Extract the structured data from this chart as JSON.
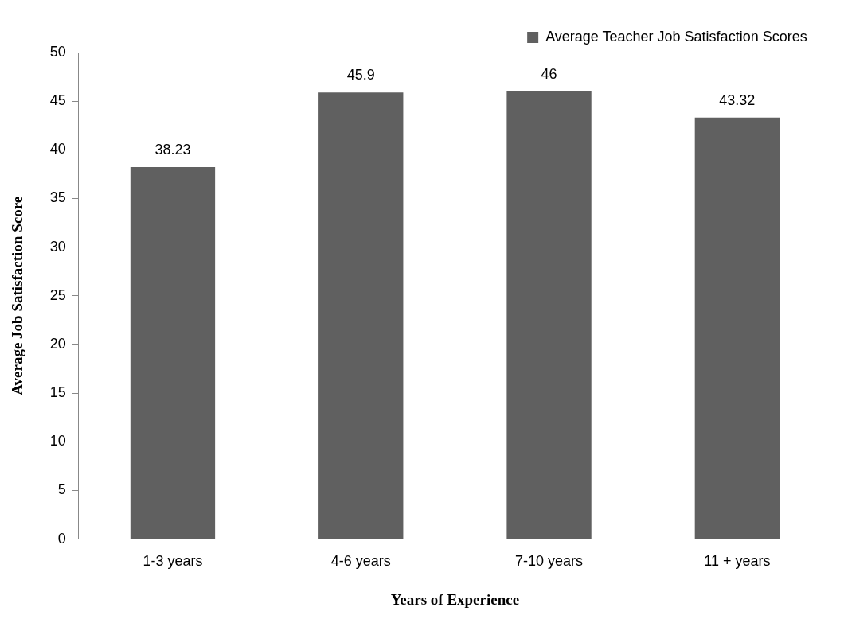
{
  "chart_data": {
    "type": "bar",
    "xlabel": "Years of Experience",
    "ylabel": "Average Job Satisfaction Score",
    "categories": [
      "1-3 years",
      "4-6 years",
      "7-10 years",
      "11 + years"
    ],
    "series": [
      {
        "name": "Average Teacher Job Satisfaction Scores",
        "color": "#606060",
        "values": [
          38.23,
          45.9,
          46,
          43.32
        ]
      }
    ],
    "ylim": [
      0,
      50
    ],
    "yticks": [
      0,
      5,
      10,
      15,
      20,
      25,
      30,
      35,
      40,
      45,
      50
    ],
    "grid": false,
    "legend": "top right",
    "data_labels": true
  }
}
